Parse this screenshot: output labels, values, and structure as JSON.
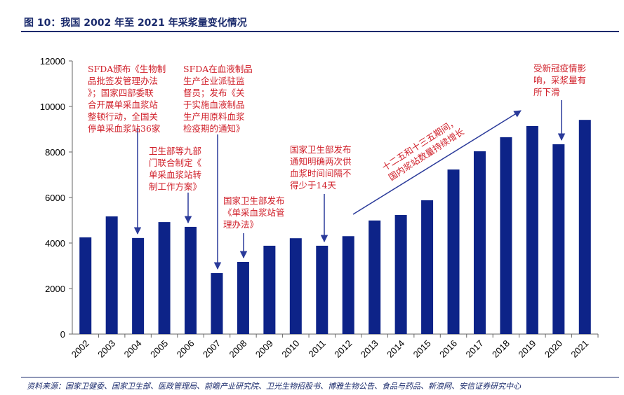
{
  "title": "图 10：我国 2002 年至 2021 年采浆量变化情况",
  "source": "资料来源：国家卫健委、国家卫生部、医政管理局、前瞻产业研究院、卫光生物招股书、博雅生物公告、食品与药品、新浪网、安信证券研究中心",
  "colors": {
    "bar": "#0d2388",
    "annotation": "#d0202a",
    "arrow": "#2a3a9a"
  },
  "chart_data": {
    "type": "bar",
    "title": "我国 2002 年至 2021 年采浆量变化情况",
    "xlabel": "",
    "ylabel": "",
    "ylim": [
      0,
      12000
    ],
    "yticks": [
      0,
      2000,
      4000,
      6000,
      8000,
      10000,
      12000
    ],
    "grid": false,
    "categories": [
      "2002",
      "2003",
      "2004",
      "2005",
      "2006",
      "2007",
      "2008",
      "2009",
      "2010",
      "2011",
      "2012",
      "2013",
      "2014",
      "2015",
      "2016",
      "2017",
      "2018",
      "2019",
      "2020",
      "2021"
    ],
    "values": [
      4250,
      5170,
      4220,
      4920,
      4710,
      2680,
      3170,
      3880,
      4210,
      3880,
      4300,
      4990,
      5230,
      5880,
      7230,
      8030,
      8650,
      9140,
      8340,
      9410
    ],
    "annotations": [
      {
        "year": "2004",
        "lines": [
          "SFDA颁布《生物制",
          "品批签发管理办法",
          "》；国家四部委联",
          "合开展单采血浆站",
          "整顿行动，全国关",
          "停单采血浆站36家"
        ]
      },
      {
        "year": "2007",
        "lines": [
          "SFDA在血液制品",
          "生产企业派驻监",
          "督员；发布《关",
          "于实施血液制品",
          "生产用原料血浆",
          "检疫期的通知》"
        ]
      },
      {
        "year": "2006",
        "lines": [
          "卫生部等九部",
          "门联合制定《",
          "单采血浆站转",
          "制工作方案》"
        ]
      },
      {
        "year": "2008",
        "lines": [
          "国家卫生部发布",
          "《单采血浆站管",
          "理办法》"
        ]
      },
      {
        "year": "2011",
        "lines": [
          "国家卫生部发布",
          "通知明确两次供",
          "血浆时间间隔不",
          "得少于14天"
        ]
      },
      {
        "year": "2012-2019",
        "lines": [
          "十二五和十三五期间，",
          "国内浆站数量持续增长"
        ]
      },
      {
        "year": "2020",
        "lines": [
          "受新冠疫情影",
          "响，采浆量有",
          "所下滑"
        ]
      }
    ]
  }
}
